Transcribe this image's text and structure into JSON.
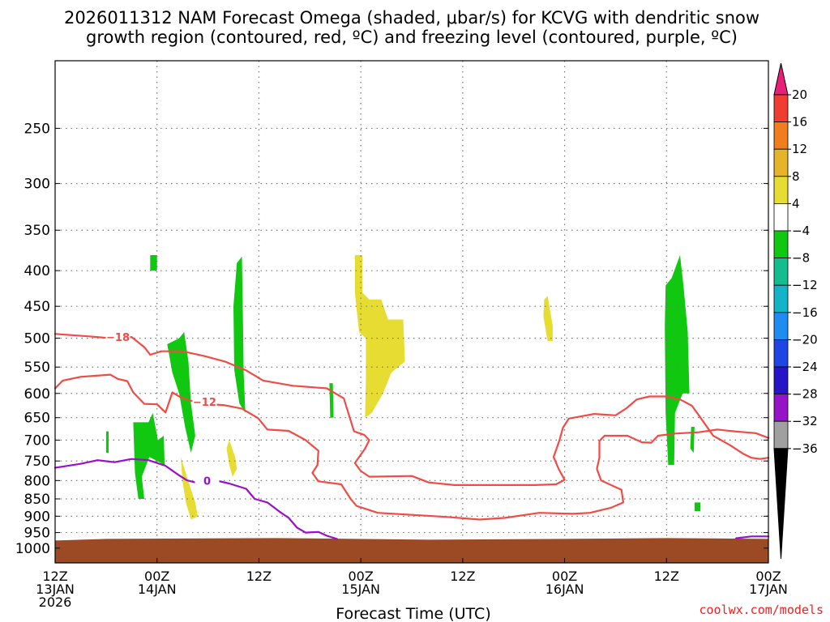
{
  "title_lines": [
    "2026011312 NAM Forecast Omega (shaded, μbar/s) for KCVG with dendritic snow",
    "growth region (contoured, red, ºC) and freezing level (contoured, purple, ºC)"
  ],
  "xlabel": "Forecast Time (UTC)",
  "credit": "coolwx.com/models",
  "colors": {
    "dgz": "#f04b46",
    "freezing": "#9a0fc8",
    "ground": "#9c4a24",
    "grid": "#777777"
  },
  "chart_data": {
    "type": "heatmap",
    "x_unit": "forecast hour from 2026-01-13 12Z",
    "xlim": [
      0,
      84
    ],
    "y_axis": "pressure (hPa), log scale, inverted",
    "ylim": [
      1050,
      200
    ],
    "y_ticks": [
      250,
      300,
      350,
      400,
      450,
      500,
      550,
      600,
      650,
      700,
      750,
      800,
      850,
      900,
      950,
      1000
    ],
    "x_ticks": [
      {
        "hour": 0,
        "lines": [
          "12Z",
          "13JAN",
          "2026"
        ]
      },
      {
        "hour": 12,
        "lines": [
          "00Z",
          "14JAN"
        ]
      },
      {
        "hour": 24,
        "lines": [
          "12Z"
        ]
      },
      {
        "hour": 36,
        "lines": [
          "00Z",
          "15JAN"
        ]
      },
      {
        "hour": 48,
        "lines": [
          "12Z"
        ]
      },
      {
        "hour": 60,
        "lines": [
          "00Z",
          "16JAN"
        ]
      },
      {
        "hour": 72,
        "lines": [
          "12Z"
        ]
      },
      {
        "hour": 84,
        "lines": [
          "00Z",
          "17JAN"
        ]
      }
    ],
    "colorbar": {
      "levels": [
        "20",
        "16",
        "12",
        "8",
        "4",
        "−4",
        "−8",
        "−12",
        "−16",
        "−20",
        "−24",
        "−28",
        "−32",
        "−36"
      ],
      "colors": [
        "#e81e78",
        "#f23c32",
        "#f07d1e",
        "#e6b428",
        "#e6dc32",
        "#ffffff",
        "#10c810",
        "#14be8c",
        "#14b4c8",
        "#1e8cf0",
        "#1e46e6",
        "#2814c8",
        "#9614c8",
        "#a0a0a0",
        "#000000"
      ]
    },
    "shaded_regions": [
      {
        "color": "#10c810",
        "points": [
          [
            11.2,
            380
          ],
          [
            12,
            380
          ],
          [
            12,
            400
          ],
          [
            11.2,
            400
          ]
        ]
      },
      {
        "color": "#10c810",
        "points": [
          [
            21.0,
            450
          ],
          [
            21.4,
            390
          ],
          [
            22,
            382
          ],
          [
            22.1,
            450
          ],
          [
            22.2,
            560
          ],
          [
            22.4,
            640
          ],
          [
            21.7,
            620
          ],
          [
            21.1,
            555
          ]
        ]
      },
      {
        "color": "#10c810",
        "points": [
          [
            13.2,
            510
          ],
          [
            14.6,
            500
          ],
          [
            15.2,
            490
          ],
          [
            15.7,
            540
          ],
          [
            16.0,
            620
          ],
          [
            16.5,
            690
          ],
          [
            16.0,
            730
          ],
          [
            15.3,
            670
          ],
          [
            14.6,
            600
          ],
          [
            13.8,
            560
          ]
        ]
      },
      {
        "color": "#10c810",
        "points": [
          [
            9.2,
            660
          ],
          [
            11.0,
            660
          ],
          [
            11.5,
            640
          ],
          [
            12.1,
            700
          ],
          [
            12.8,
            690
          ],
          [
            12.9,
            760
          ],
          [
            11.1,
            740
          ],
          [
            10.2,
            790
          ],
          [
            10.5,
            850
          ],
          [
            9.8,
            850
          ],
          [
            9.4,
            780
          ]
        ]
      },
      {
        "color": "#10c810",
        "points": [
          [
            6.0,
            680
          ],
          [
            6.3,
            680
          ],
          [
            6.3,
            730
          ],
          [
            6.0,
            730
          ]
        ]
      },
      {
        "color": "#10c810",
        "points": [
          [
            32.3,
            580
          ],
          [
            32.7,
            580
          ],
          [
            32.8,
            650
          ],
          [
            32.4,
            650
          ]
        ]
      },
      {
        "color": "#10c810",
        "points": [
          [
            71.9,
            420
          ],
          [
            72.6,
            410
          ],
          [
            73.6,
            380
          ],
          [
            74,
            420
          ],
          [
            74.5,
            490
          ],
          [
            74.7,
            600
          ],
          [
            73.9,
            600
          ],
          [
            73.0,
            640
          ],
          [
            72.9,
            760
          ],
          [
            72.2,
            760
          ],
          [
            71.9,
            640
          ],
          [
            71.8,
            480
          ]
        ]
      },
      {
        "color": "#10c810",
        "points": [
          [
            74.9,
            670
          ],
          [
            75.3,
            670
          ],
          [
            75.2,
            730
          ],
          [
            74.8,
            720
          ]
        ]
      },
      {
        "color": "#10c810",
        "points": [
          [
            75.3,
            860
          ],
          [
            76,
            860
          ],
          [
            76,
            885
          ],
          [
            75.3,
            885
          ]
        ]
      },
      {
        "color": "#e6dc32",
        "points": [
          [
            35.3,
            380
          ],
          [
            36.2,
            380
          ],
          [
            36.2,
            430
          ],
          [
            37.0,
            440
          ],
          [
            38.4,
            440
          ],
          [
            39.2,
            470
          ],
          [
            41.0,
            470
          ],
          [
            41.2,
            540
          ],
          [
            39.6,
            560
          ],
          [
            38.6,
            600
          ],
          [
            37.3,
            640
          ],
          [
            36.5,
            650
          ],
          [
            36.6,
            570
          ],
          [
            36.6,
            500
          ],
          [
            35.8,
            490
          ],
          [
            35.3,
            430
          ]
        ]
      },
      {
        "color": "#e6dc32",
        "points": [
          [
            57.6,
            440
          ],
          [
            58.0,
            435
          ],
          [
            58.6,
            480
          ],
          [
            58.6,
            505
          ],
          [
            58.0,
            505
          ],
          [
            57.5,
            465
          ]
        ]
      },
      {
        "color": "#e6dc32",
        "points": [
          [
            20.5,
            700
          ],
          [
            21.2,
            740
          ],
          [
            21.4,
            770
          ],
          [
            20.9,
            790
          ],
          [
            20.5,
            760
          ],
          [
            20.2,
            720
          ]
        ]
      },
      {
        "color": "#e6dc32",
        "points": [
          [
            14.8,
            740
          ],
          [
            15.8,
            810
          ],
          [
            16.5,
            860
          ],
          [
            16.8,
            900
          ],
          [
            16.0,
            910
          ],
          [
            15.4,
            860
          ],
          [
            15.0,
            800
          ]
        ]
      }
    ],
    "contours": [
      {
        "name": "dgz_upper_-18",
        "color": "#f04b46",
        "label": "−18",
        "label_at": [
          7.4,
          498
        ],
        "points": [
          [
            0,
            493
          ],
          [
            4,
            497
          ],
          [
            6.5,
            500
          ],
          [
            9,
            498
          ],
          [
            10.5,
            515
          ],
          [
            11.2,
            528
          ],
          [
            12.5,
            522
          ],
          [
            15,
            522
          ],
          [
            17.5,
            530
          ],
          [
            20,
            540
          ],
          [
            22.5,
            556
          ],
          [
            24.5,
            575
          ],
          [
            28,
            585
          ],
          [
            32,
            590
          ],
          [
            34,
            610
          ],
          [
            34.7,
            650
          ],
          [
            35.2,
            680
          ],
          [
            36.4,
            688
          ],
          [
            37.0,
            700
          ],
          [
            36.5,
            720
          ],
          [
            35.3,
            755
          ],
          [
            36.0,
            775
          ],
          [
            37.0,
            790
          ],
          [
            42,
            788
          ],
          [
            44,
            805
          ],
          [
            47,
            812
          ],
          [
            52,
            812
          ],
          [
            56.5,
            812
          ],
          [
            59,
            810
          ],
          [
            60,
            798
          ],
          [
            59.3,
            770
          ],
          [
            58.7,
            740
          ],
          [
            59.4,
            700
          ],
          [
            59.8,
            672
          ],
          [
            60.5,
            652
          ],
          [
            63.5,
            642
          ],
          [
            66,
            645
          ],
          [
            67.3,
            630
          ],
          [
            68.5,
            612
          ],
          [
            70,
            606
          ],
          [
            72,
            606
          ],
          [
            73.6,
            612
          ],
          [
            75,
            625
          ],
          [
            76,
            650
          ],
          [
            77.5,
            690
          ],
          [
            79.5,
            712
          ],
          [
            81,
            732
          ],
          [
            82,
            742
          ],
          [
            83,
            745
          ],
          [
            84,
            742
          ]
        ]
      },
      {
        "name": "dgz_lower_-12",
        "color": "#f04b46",
        "label": "−12",
        "label_at": [
          17.6,
          617
        ],
        "points": [
          [
            0,
            590
          ],
          [
            0.9,
            575
          ],
          [
            3,
            568
          ],
          [
            4.7,
            566
          ],
          [
            6.5,
            564
          ],
          [
            7.4,
            572
          ],
          [
            8.5,
            576
          ],
          [
            9.2,
            598
          ],
          [
            10.5,
            621
          ],
          [
            12,
            622
          ],
          [
            13,
            639
          ],
          [
            13.8,
            598
          ],
          [
            14.8,
            608
          ],
          [
            17,
            620
          ],
          [
            20,
            624
          ],
          [
            22,
            631
          ],
          [
            23.9,
            651
          ],
          [
            25,
            676
          ],
          [
            27.5,
            679
          ],
          [
            29.5,
            700
          ],
          [
            31,
            725
          ],
          [
            30.9,
            760
          ],
          [
            30.3,
            780
          ],
          [
            31.0,
            802
          ],
          [
            33.7,
            810
          ],
          [
            34.8,
            850
          ],
          [
            35.5,
            870
          ],
          [
            38,
            890
          ],
          [
            42,
            896
          ],
          [
            46,
            902
          ],
          [
            50,
            910
          ],
          [
            53,
            905
          ],
          [
            57,
            890
          ],
          [
            61,
            893
          ],
          [
            63,
            890
          ],
          [
            65.5,
            875
          ],
          [
            66.9,
            860
          ],
          [
            66.7,
            825
          ],
          [
            64.3,
            800
          ],
          [
            63.8,
            770
          ],
          [
            64.1,
            742
          ],
          [
            64.1,
            702
          ],
          [
            64.7,
            690
          ],
          [
            67.4,
            690
          ],
          [
            69.1,
            705
          ],
          [
            70.2,
            706
          ],
          [
            71,
            690
          ],
          [
            73,
            685
          ],
          [
            75.8,
            682
          ],
          [
            78,
            676
          ],
          [
            80,
            680
          ],
          [
            82.5,
            684
          ],
          [
            84,
            695
          ]
        ]
      },
      {
        "name": "freezing_0",
        "color": "#9a0fc8",
        "label": "0",
        "label_at": [
          17.9,
          800
        ],
        "points": [
          [
            0,
            767
          ],
          [
            3,
            757
          ],
          [
            5,
            748
          ],
          [
            7,
            753
          ],
          [
            9,
            745
          ],
          [
            11,
            748
          ],
          [
            13,
            762
          ],
          [
            14.5,
            785
          ],
          [
            15.5,
            799
          ],
          [
            16.5,
            805
          ],
          [
            17,
            797
          ],
          [
            18,
            795
          ],
          [
            20.5,
            808
          ],
          [
            22.5,
            822
          ],
          [
            23.5,
            850
          ],
          [
            25,
            860
          ],
          [
            26.5,
            888
          ],
          [
            27.5,
            905
          ],
          [
            28.5,
            935
          ],
          [
            29.5,
            950
          ],
          [
            31,
            948
          ],
          [
            32,
            960
          ],
          [
            33.2,
            970
          ]
        ]
      },
      {
        "name": "freezing_right",
        "color": "#9a0fc8",
        "label": "",
        "points": [
          [
            80.2,
            968
          ],
          [
            82,
            962
          ],
          [
            84,
            962
          ]
        ]
      }
    ],
    "ground": {
      "color": "#9c4a24",
      "top_pressure": 970
    }
  }
}
